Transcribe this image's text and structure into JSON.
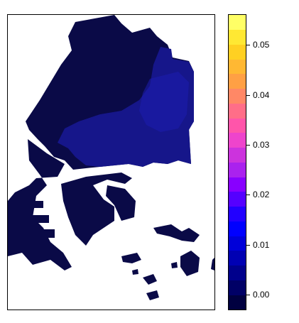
{
  "map": {
    "type": "raster",
    "land_color_base": "#0a0a47",
    "highlight_colors": [
      "#16168a",
      "#1d1db0"
    ],
    "background": "#ffffff"
  },
  "legend": {
    "colors": [
      "#000040",
      "#000066",
      "#00008c",
      "#0000b3",
      "#0000d9",
      "#0000ff",
      "#2200ff",
      "#5500ff",
      "#8800ff",
      "#aa22ee",
      "#cc33dd",
      "#ee44cc",
      "#ff55aa",
      "#ff6e88",
      "#ff8866",
      "#ffa044",
      "#ffb833",
      "#ffd022",
      "#ffe833",
      "#ffff66"
    ],
    "ticks": [
      {
        "label": "0.00",
        "value": 0.0
      },
      {
        "label": "0.01",
        "value": 0.01
      },
      {
        "label": "0.02",
        "value": 0.02
      },
      {
        "label": "0.03",
        "value": 0.03
      },
      {
        "label": "0.04",
        "value": 0.04
      },
      {
        "label": "0.05",
        "value": 0.05
      }
    ],
    "range": [
      -0.003,
      0.056
    ]
  }
}
